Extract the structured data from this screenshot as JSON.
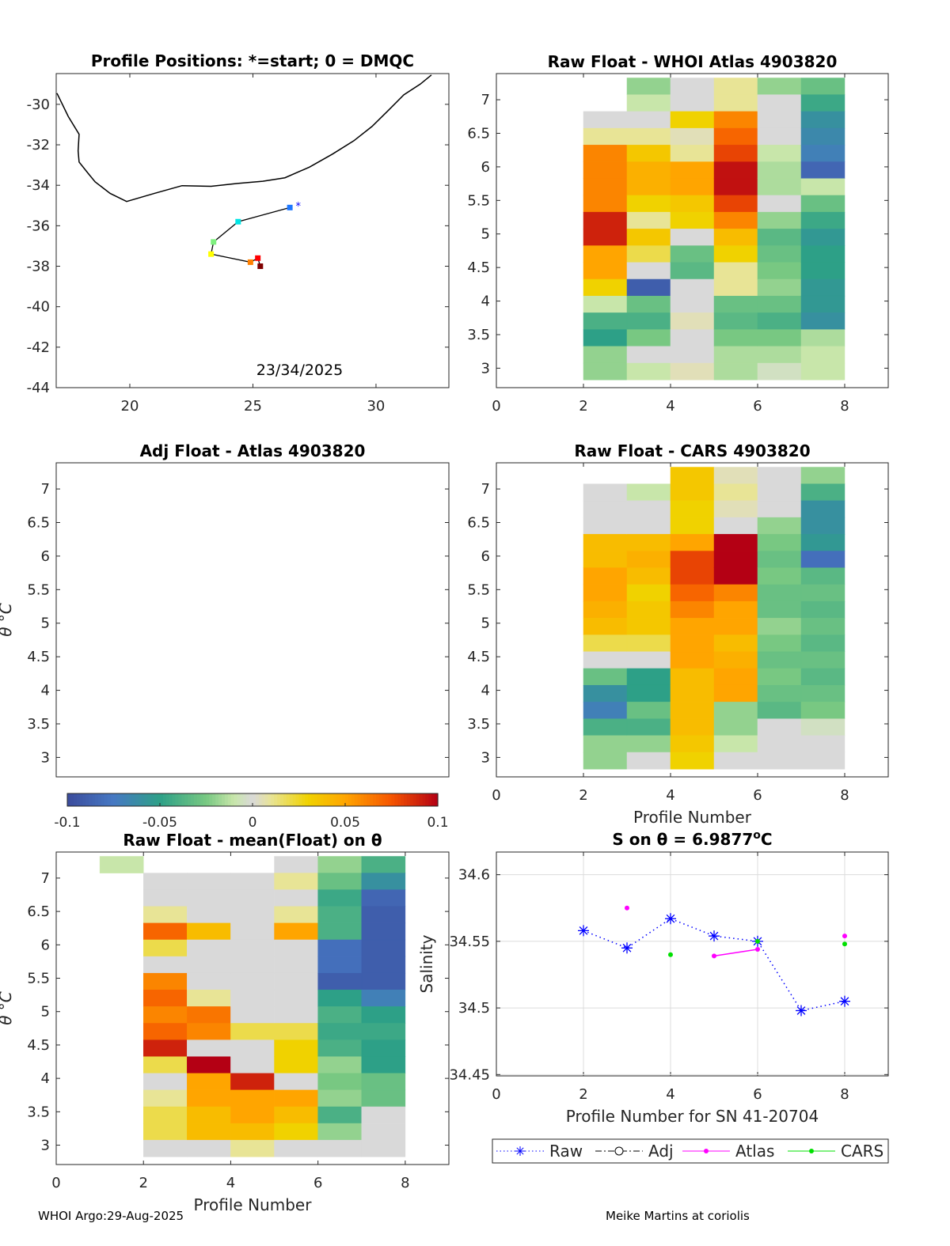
{
  "colors": {
    "raw": "#0000ff",
    "atlas": "#ff00ff",
    "cars": "#00e000",
    "coast": "#000000",
    "grid": "#d9d9d9"
  },
  "footer": {
    "left": "WHOI Argo:29-Aug-2025",
    "right": "Meike Martins at coriolis"
  },
  "colorbar": {
    "ticks": [
      "-0.1",
      "-0.05",
      "0",
      "0.05",
      "0.1"
    ],
    "range": [
      -0.1,
      0.1
    ]
  },
  "chart_data": [
    {
      "id": "map",
      "type": "scatter",
      "title": "Profile Positions: *=start; 0 = DMQC",
      "annotation": "23/34/2025",
      "xticks": [
        "20",
        "25",
        "30"
      ],
      "xtick_values": [
        20,
        25,
        30
      ],
      "yticks": [
        "-30",
        "-32",
        "-34",
        "-36",
        "-38",
        "-40",
        "-42",
        "-44"
      ],
      "ytick_values": [
        -30,
        -32,
        -34,
        -36,
        -38,
        -40,
        -42,
        -44
      ],
      "xlim": [
        17.01,
        32.96
      ],
      "ylim": [
        -44,
        -28.48
      ],
      "coastline": [
        [
          17.04,
          -29.45
        ],
        [
          17.5,
          -30.6
        ],
        [
          17.94,
          -31.48
        ],
        [
          17.9,
          -32.3
        ],
        [
          17.94,
          -32.85
        ],
        [
          18.3,
          -33.4
        ],
        [
          18.59,
          -33.83
        ],
        [
          19.2,
          -34.4
        ],
        [
          19.87,
          -34.8
        ],
        [
          21.0,
          -34.4
        ],
        [
          22.12,
          -34.02
        ],
        [
          23.3,
          -34.05
        ],
        [
          24.37,
          -33.91
        ],
        [
          25.4,
          -33.8
        ],
        [
          26.3,
          -33.63
        ],
        [
          27.3,
          -33.1
        ],
        [
          28.23,
          -32.46
        ],
        [
          29.1,
          -31.8
        ],
        [
          29.84,
          -31.09
        ],
        [
          30.5,
          -30.3
        ],
        [
          31.13,
          -29.53
        ],
        [
          31.8,
          -29.0
        ],
        [
          32.25,
          -28.55
        ]
      ],
      "track": [
        {
          "lon": 26.8,
          "lat": -35.0,
          "marker": "start",
          "color": "#0000ff"
        },
        {
          "lon": 26.5,
          "lat": -35.1,
          "color": "#1e78ff"
        },
        {
          "lon": 24.4,
          "lat": -35.8,
          "color": "#00e5e5"
        },
        {
          "lon": 23.4,
          "lat": -36.8,
          "color": "#7ff07f"
        },
        {
          "lon": 23.3,
          "lat": -37.4,
          "color": "#ffff00"
        },
        {
          "lon": 24.9,
          "lat": -37.8,
          "color": "#ff8000"
        },
        {
          "lon": 25.2,
          "lat": -37.6,
          "color": "#ff0000"
        },
        {
          "lon": 25.3,
          "lat": -38.0,
          "color": "#800000"
        }
      ]
    },
    {
      "id": "atlas",
      "type": "heatmap",
      "title": "Raw Float - WHOI Atlas  4903820",
      "xticks": [
        "0",
        "2",
        "4",
        "6",
        "8"
      ],
      "yticks": [
        "3",
        "3.5",
        "4",
        "4.5",
        "5",
        "5.5",
        "6",
        "6.5",
        "7"
      ],
      "xlim": [
        0,
        9
      ],
      "ylim": [
        2.71,
        7.39
      ],
      "levels": [
        7.2,
        6.95,
        6.7,
        6.45,
        6.2,
        5.95,
        5.7,
        5.45,
        5.2,
        4.95,
        4.7,
        4.45,
        4.2,
        3.95,
        3.7,
        3.45,
        3.2,
        2.95
      ],
      "columns": [
        {
          "x0": 2,
          "values": [
            null,
            null,
            0,
            0.01,
            0.06,
            0.06,
            0.06,
            0.06,
            0.09,
            0.09,
            0.05,
            0.05,
            0.03,
            -0.01,
            -0.04,
            -0.05,
            -0.02,
            -0.02
          ]
        },
        {
          "x0": 3,
          "values": [
            -0.02,
            -0.01,
            0,
            0.01,
            0.035,
            0.045,
            0.045,
            0.03,
            0.01,
            0.035,
            0.02,
            0,
            -0.09,
            -0.03,
            -0.04,
            -0.025,
            0,
            -0.01
          ]
        },
        {
          "x0": 4,
          "values": [
            0,
            0,
            0.03,
            0.005,
            0.01,
            0.05,
            0.05,
            0.035,
            0.03,
            0,
            -0.03,
            -0.035,
            0,
            0,
            0.005,
            0,
            0,
            0.005
          ]
        },
        {
          "x0": 5,
          "values": [
            0.01,
            0.01,
            0.06,
            0.07,
            0.08,
            0.095,
            0.095,
            0.08,
            0.06,
            0.04,
            0.03,
            0.01,
            0.01,
            -0.03,
            -0.035,
            -0.025,
            -0.015,
            -0.015
          ]
        },
        {
          "x0": 6,
          "values": [
            -0.02,
            0,
            0,
            0,
            -0.01,
            -0.015,
            -0.015,
            0,
            -0.02,
            -0.035,
            -0.03,
            -0.025,
            -0.02,
            -0.03,
            -0.04,
            -0.025,
            -0.015,
            -0.005
          ]
        },
        {
          "x0": 7,
          "values": [
            -0.03,
            -0.045,
            -0.06,
            -0.065,
            -0.07,
            -0.085,
            -0.01,
            -0.03,
            -0.045,
            -0.055,
            -0.05,
            -0.05,
            -0.055,
            -0.055,
            -0.06,
            -0.015,
            -0.01,
            -0.01
          ]
        }
      ]
    },
    {
      "id": "adj",
      "type": "heatmap",
      "title": "Adj Float - Atlas  4903820",
      "ylabel": "θ °C",
      "xticks": [],
      "yticks": [
        "3",
        "3.5",
        "4",
        "4.5",
        "5",
        "5.5",
        "6",
        "6.5",
        "7"
      ],
      "xlim": [
        0,
        9
      ],
      "ylim": [
        2.71,
        7.39
      ],
      "columns": []
    },
    {
      "id": "cars",
      "type": "heatmap",
      "title": "Raw Float - CARS  4903820",
      "xlabel": "Profile Number",
      "xticks": [
        "0",
        "2",
        "4",
        "6",
        "8"
      ],
      "yticks": [
        "3",
        "3.5",
        "4",
        "4.5",
        "5",
        "5.5",
        "6",
        "6.5",
        "7"
      ],
      "xlim": [
        0,
        9
      ],
      "ylim": [
        2.71,
        7.39
      ],
      "levels": [
        7.2,
        6.95,
        6.7,
        6.45,
        6.2,
        5.95,
        5.7,
        5.45,
        5.2,
        4.95,
        4.7,
        4.45,
        4.2,
        3.95,
        3.7,
        3.45,
        3.2,
        2.95
      ],
      "columns": [
        {
          "x0": 2,
          "values": [
            null,
            0,
            0,
            0,
            0.04,
            0.04,
            0.05,
            0.05,
            0.045,
            0.04,
            0.02,
            0,
            -0.03,
            -0.06,
            -0.07,
            -0.04,
            -0.02,
            -0.02
          ]
        },
        {
          "x0": 3,
          "values": [
            null,
            -0.01,
            0,
            0,
            0.04,
            0.045,
            0.04,
            0.03,
            0.035,
            0.035,
            0.02,
            0,
            -0.05,
            -0.05,
            -0.03,
            -0.04,
            -0.02,
            0
          ]
        },
        {
          "x0": 4,
          "values": [
            0.035,
            0.035,
            0.03,
            0.03,
            0.05,
            0.08,
            0.08,
            0.07,
            0.06,
            0.05,
            0.05,
            0.05,
            0.04,
            0.04,
            0.04,
            0.04,
            0.035,
            0.03
          ]
        },
        {
          "x0": 5,
          "values": [
            0.005,
            0.01,
            0.005,
            0,
            0.1,
            0.1,
            0.1,
            0.06,
            0.05,
            0.05,
            0.04,
            0.045,
            0.05,
            0.05,
            -0.02,
            -0.02,
            -0.01,
            0
          ]
        },
        {
          "x0": 6,
          "values": [
            0,
            0,
            0,
            -0.02,
            -0.025,
            -0.03,
            -0.025,
            -0.03,
            -0.03,
            -0.02,
            -0.025,
            -0.03,
            -0.025,
            -0.03,
            -0.035,
            0,
            0,
            0
          ]
        },
        {
          "x0": 7,
          "values": [
            -0.02,
            -0.04,
            -0.06,
            -0.06,
            -0.055,
            -0.08,
            -0.035,
            -0.03,
            -0.035,
            -0.03,
            -0.035,
            -0.03,
            -0.035,
            -0.03,
            -0.025,
            -0.005,
            0,
            0
          ]
        }
      ]
    },
    {
      "id": "mean",
      "type": "heatmap",
      "title": "Raw Float - mean(Float) on θ",
      "xlabel": "Profile Number",
      "ylabel": "θ °C",
      "xticks": [
        "0",
        "2",
        "4",
        "6",
        "8"
      ],
      "yticks": [
        "3",
        "3.5",
        "4",
        "4.5",
        "5",
        "5.5",
        "6",
        "6.5",
        "7"
      ],
      "xlim": [
        0,
        9
      ],
      "ylim": [
        2.71,
        7.39
      ],
      "levels": [
        7.2,
        6.95,
        6.7,
        6.45,
        6.2,
        5.95,
        5.7,
        5.45,
        5.2,
        4.95,
        4.7,
        4.45,
        4.2,
        3.95,
        3.7,
        3.45,
        3.2,
        2.95
      ],
      "columns": [
        {
          "x0": 1,
          "values": [
            -0.01,
            null,
            null,
            null,
            null,
            null,
            null,
            null,
            null,
            null,
            null,
            null,
            null,
            null,
            null,
            null,
            null,
            null
          ]
        },
        {
          "x0": 2,
          "values": [
            null,
            0,
            0,
            0.01,
            0.07,
            0.02,
            0,
            0.06,
            0.07,
            0.06,
            0.07,
            0.09,
            0.02,
            0,
            0.01,
            0.02,
            0.02,
            0
          ]
        },
        {
          "x0": 3,
          "values": [
            null,
            0,
            0,
            0,
            0.04,
            0,
            0,
            0,
            0.01,
            0.065,
            0.06,
            0,
            0.1,
            0.05,
            0.05,
            0.04,
            0.04,
            0
          ]
        },
        {
          "x0": 4,
          "values": [
            null,
            0,
            0,
            0,
            0,
            0,
            0,
            0,
            0,
            0,
            0.02,
            0,
            0,
            0.09,
            0.05,
            0.05,
            0.04,
            0.01
          ]
        },
        {
          "x0": 5,
          "values": [
            0,
            0.01,
            0,
            0.01,
            0.05,
            0,
            0,
            0,
            0,
            0,
            0.02,
            0.03,
            0.03,
            0,
            0.05,
            0.04,
            0.03,
            0
          ]
        },
        {
          "x0": 6,
          "values": [
            -0.02,
            -0.03,
            -0.045,
            -0.04,
            -0.04,
            -0.08,
            -0.08,
            -0.09,
            -0.05,
            -0.04,
            -0.045,
            -0.04,
            -0.02,
            -0.025,
            -0.02,
            -0.04,
            -0.02,
            0
          ]
        },
        {
          "x0": 7,
          "values": [
            -0.04,
            -0.06,
            -0.085,
            -0.09,
            -0.09,
            -0.09,
            -0.09,
            -0.09,
            -0.07,
            -0.05,
            -0.045,
            -0.05,
            -0.05,
            -0.03,
            -0.03,
            0,
            0,
            0
          ]
        }
      ]
    },
    {
      "id": "salinity",
      "type": "line",
      "title_prefix": "S on θ = 6.9877",
      "title_sup": "o",
      "title_suffix": "C",
      "xlabel": "Profile Number for SN 41-20704",
      "ylabel": "Salinity",
      "xticks": [
        "0",
        "2",
        "4",
        "6",
        "8"
      ],
      "yticks": [
        "34.45",
        "34.5",
        "34.55",
        "34.6"
      ],
      "xlim": [
        0,
        9
      ],
      "ylim": [
        34.449,
        34.617
      ],
      "grid": true,
      "series": [
        {
          "name": "Raw",
          "style": "dotted-star",
          "x": [
            2,
            3,
            4,
            5,
            6,
            7,
            8
          ],
          "y": [
            34.558,
            34.545,
            34.567,
            34.554,
            34.55,
            34.498,
            34.505
          ]
        },
        {
          "name": "Adj",
          "style": "dashdot-circle",
          "x": [],
          "y": []
        },
        {
          "name": "Atlas",
          "style": "solid-dot",
          "x": [
            3,
            5,
            6,
            8
          ],
          "y": [
            34.575,
            34.539,
            34.544,
            34.554
          ],
          "segments": [
            [
              5,
              6
            ]
          ]
        },
        {
          "name": "CARS",
          "style": "solid-dot",
          "x": [
            4,
            6,
            8
          ],
          "y": [
            34.54,
            34.55,
            34.548
          ]
        }
      ],
      "legend": {
        "placement": "bottom",
        "entries": [
          "Raw",
          "Adj",
          "Atlas",
          "CARS"
        ]
      }
    }
  ]
}
